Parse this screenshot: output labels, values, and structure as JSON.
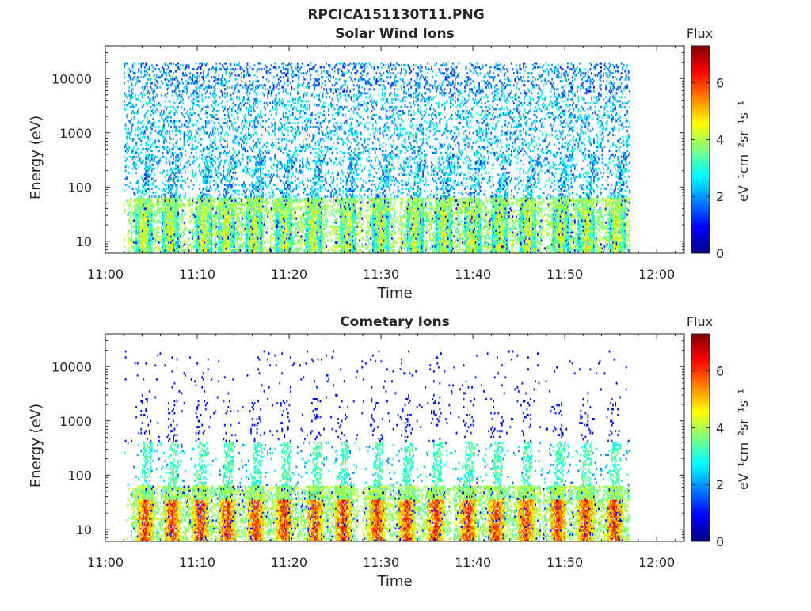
{
  "figure": {
    "title": "RPCICA151130T11.PNG"
  },
  "colorbar": {
    "label": "Flux",
    "unit_label": "eV⁻¹cm⁻²sr⁻¹s⁻¹",
    "colormap": "jet",
    "range": [
      0,
      7.3
    ],
    "ticks": [
      "0",
      "2",
      "4",
      "6"
    ]
  },
  "chart_data": [
    {
      "type": "heatmap",
      "title": "Solar Wind Ions",
      "xlabel": "Time",
      "ylabel": "Energy (eV)",
      "y_scale": "log",
      "xlim": [
        "11:00",
        "12:03"
      ],
      "ylim": [
        6,
        40000
      ],
      "x_ticks": [
        "11:00",
        "11:10",
        "11:20",
        "11:30",
        "11:40",
        "11:50",
        "12:00"
      ],
      "y_ticks": [
        "10",
        "100",
        "1000",
        "10000"
      ],
      "grid": false,
      "data_extent": {
        "x": [
          "11:02",
          "11:57"
        ],
        "y": [
          6,
          20000
        ]
      },
      "pulse_minutes": [
        4.1,
        7.0,
        10.6,
        13.1,
        16.1,
        19.4,
        22.6,
        26.3,
        29.9,
        33.6,
        36.8,
        39.9,
        42.9,
        45.9,
        49.5,
        52.3,
        55.6
      ],
      "low_energy_flux_peak": 5.2,
      "high_energy_flux_typical": 2.0
    },
    {
      "type": "heatmap",
      "title": "Cometary Ions",
      "xlabel": "Time",
      "ylabel": "Energy (eV)",
      "y_scale": "log",
      "xlim": [
        "11:00",
        "12:03"
      ],
      "ylim": [
        6,
        40000
      ],
      "x_ticks": [
        "11:00",
        "11:10",
        "11:20",
        "11:30",
        "11:40",
        "11:50",
        "12:00"
      ],
      "y_ticks": [
        "10",
        "100",
        "1000",
        "10000"
      ],
      "grid": false,
      "data_extent": {
        "x": [
          "11:02",
          "11:57"
        ],
        "y": [
          6,
          20000
        ]
      },
      "pulse_minutes": [
        4.3,
        7.2,
        10.3,
        13.2,
        16.3,
        19.4,
        22.8,
        25.8,
        29.5,
        32.7,
        35.9,
        39.4,
        42.5,
        45.7,
        49.2,
        52.2,
        55.3
      ],
      "low_energy_flux_peak": 6.8,
      "high_energy_flux_typical": 0.8
    }
  ]
}
